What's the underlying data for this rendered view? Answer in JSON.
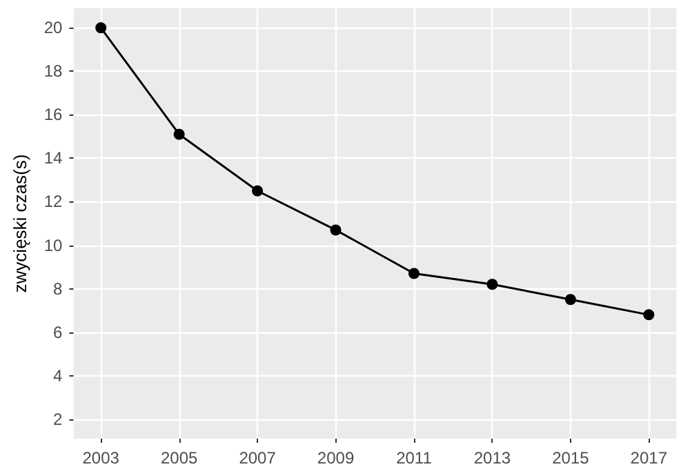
{
  "chart_data": {
    "type": "line",
    "ylabel": "zwycięski czas(s)",
    "x": [
      2003,
      2005,
      2007,
      2009,
      2011,
      2013,
      2015,
      2017
    ],
    "series": [
      {
        "color": "#000000",
        "values": [
          20,
          15.1,
          12.5,
          10.7,
          8.7,
          8.2,
          7.5,
          6.8
        ]
      }
    ],
    "xlim": [
      2002.3,
      2017.7
    ],
    "xticks": [
      2003,
      2005,
      2007,
      2009,
      2011,
      2013,
      2015,
      2017
    ],
    "ylim": [
      1.1,
      20.9
    ],
    "yticks": [
      2,
      4,
      6,
      8,
      10,
      12,
      14,
      16,
      18,
      20
    ],
    "grid": true,
    "marker": "circle",
    "line_style": "solid"
  }
}
